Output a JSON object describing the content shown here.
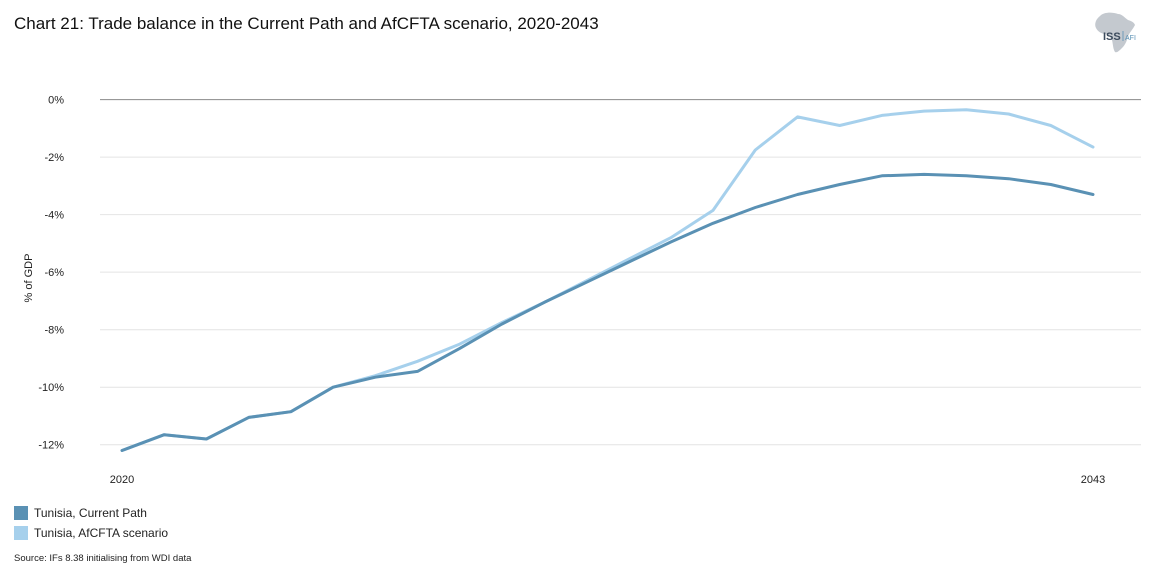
{
  "title": "Chart 21: Trade balance in the Current Path and AfCFTA scenario, 2020-2043",
  "logo": {
    "text_main": "ISS",
    "text_sub": "AFI",
    "icon": "africa-map-icon"
  },
  "source": "Source: IFs 8.38 initialising from WDI data",
  "colors": {
    "current_path": "#5a91b4",
    "afcfta": "#a6d0ec",
    "grid": "#e4e4e4",
    "zero_line": "#8a8a8a"
  },
  "chart_data": {
    "type": "line",
    "title": "Chart 21: Trade balance in the Current Path and AfCFTA scenario, 2020-2043",
    "xlabel": "",
    "ylabel": "% of GDP",
    "x": [
      2020,
      2021,
      2022,
      2023,
      2024,
      2025,
      2026,
      2027,
      2028,
      2029,
      2030,
      2031,
      2032,
      2033,
      2034,
      2035,
      2036,
      2037,
      2038,
      2039,
      2040,
      2041,
      2042,
      2043
    ],
    "x_tick_labels": [
      {
        "value": 2020,
        "label": "2020"
      },
      {
        "value": 2043,
        "label": "2043"
      }
    ],
    "ylim": [
      -12.6,
      0.3
    ],
    "y_ticks": [
      0,
      -2,
      -4,
      -6,
      -8,
      -10,
      -12
    ],
    "y_tick_labels": [
      "0%",
      "-2%",
      "-4%",
      "-6%",
      "-8%",
      "-10%",
      "-12%"
    ],
    "grid": true,
    "legend_position": "bottom-left",
    "series": [
      {
        "name": "Tunisia, Current Path",
        "color": "#5a91b4",
        "values": [
          -12.2,
          -11.65,
          -11.8,
          -11.05,
          -10.85,
          -10.0,
          -9.65,
          -9.45,
          -8.65,
          -7.8,
          -7.05,
          -6.35,
          -5.65,
          -4.95,
          -4.3,
          -3.75,
          -3.3,
          -2.95,
          -2.65,
          -2.6,
          -2.65,
          -2.75,
          -2.95,
          -3.3
        ]
      },
      {
        "name": "Tunisia, AfCFTA scenario",
        "color": "#a6d0ec",
        "values": [
          -12.2,
          -11.65,
          -11.8,
          -11.05,
          -10.85,
          -10.0,
          -9.6,
          -9.1,
          -8.5,
          -7.75,
          -7.05,
          -6.3,
          -5.55,
          -4.8,
          -3.85,
          -1.75,
          -0.6,
          -0.9,
          -0.55,
          -0.4,
          -0.35,
          -0.5,
          -0.9,
          -1.65
        ]
      }
    ]
  }
}
